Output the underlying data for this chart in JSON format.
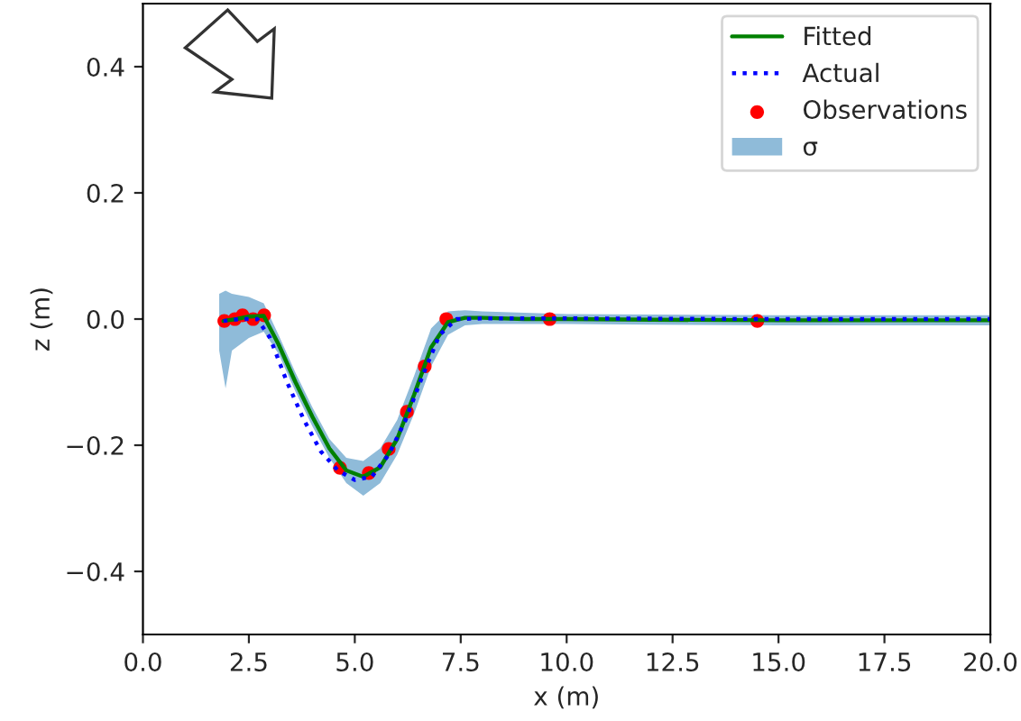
{
  "chart_data": {
    "type": "line",
    "xlabel": "x (m)",
    "ylabel": "z (m)",
    "xlim": [
      0,
      20
    ],
    "ylim": [
      -0.5,
      0.5
    ],
    "xticks": [
      {
        "value": 0,
        "label": "0.0"
      },
      {
        "value": 2.5,
        "label": "2.5"
      },
      {
        "value": 5,
        "label": "5.0"
      },
      {
        "value": 7.5,
        "label": "7.5"
      },
      {
        "value": 10,
        "label": "10.0"
      },
      {
        "value": 12.5,
        "label": "12.5"
      },
      {
        "value": 15,
        "label": "15.0"
      },
      {
        "value": 17.5,
        "label": "17.5"
      },
      {
        "value": 20,
        "label": "20.0"
      }
    ],
    "yticks": [
      {
        "value": -0.4,
        "label": "−0.4"
      },
      {
        "value": -0.2,
        "label": "−0.2"
      },
      {
        "value": 0,
        "label": "0.0"
      },
      {
        "value": 0.2,
        "label": "0.2"
      },
      {
        "value": 0.4,
        "label": "0.4"
      }
    ],
    "legend": "top right",
    "grid": false,
    "series": [
      {
        "name": "σ",
        "type": "area",
        "color": "#8fbbd9",
        "x": [
          1.8,
          1.95,
          2.1,
          2.5,
          2.85,
          3.2,
          3.6,
          4.0,
          4.4,
          4.8,
          5.2,
          5.6,
          6.0,
          6.4,
          6.8,
          7.2,
          7.6,
          8.0,
          9,
          10,
          12,
          15,
          20
        ],
        "values": [
          null,
          null,
          null,
          null,
          null,
          null,
          null,
          null,
          null,
          null,
          null,
          null,
          null,
          null,
          null,
          null,
          null,
          null,
          null,
          null,
          null,
          null,
          null
        ],
        "lower": [
          -0.05,
          -0.11,
          -0.05,
          -0.03,
          -0.02,
          -0.055,
          -0.115,
          -0.17,
          -0.22,
          -0.26,
          -0.28,
          -0.26,
          -0.215,
          -0.15,
          -0.075,
          -0.025,
          -0.01,
          -0.008,
          -0.008,
          -0.008,
          -0.009,
          -0.01,
          -0.01
        ],
        "upper": [
          0.04,
          0.045,
          0.04,
          0.035,
          0.025,
          -0.025,
          -0.085,
          -0.14,
          -0.19,
          -0.22,
          -0.225,
          -0.205,
          -0.16,
          -0.09,
          -0.015,
          0.012,
          0.014,
          0.012,
          0.01,
          0.008,
          0.007,
          0.006,
          0.006
        ]
      },
      {
        "name": "Fitted",
        "type": "line",
        "color": "#008000",
        "line_style": "solid",
        "x": [
          1.9,
          2.2,
          2.5,
          2.85,
          3.2,
          3.6,
          4.0,
          4.4,
          4.8,
          5.2,
          5.6,
          6.0,
          6.4,
          6.8,
          7.2,
          7.6,
          8.0,
          9,
          10,
          12,
          15,
          20
        ],
        "values": [
          -0.003,
          0.0,
          0.004,
          0.005,
          -0.04,
          -0.1,
          -0.155,
          -0.205,
          -0.24,
          -0.25,
          -0.235,
          -0.19,
          -0.12,
          -0.045,
          -0.005,
          0.002,
          0.002,
          0.0,
          0.0,
          -0.001,
          -0.002,
          -0.002
        ]
      },
      {
        "name": "Actual",
        "type": "line",
        "color": "#0000ff",
        "line_style": "dotted",
        "x": [
          1.9,
          2.3,
          2.7,
          3.0,
          3.4,
          3.8,
          4.2,
          4.6,
          5.0,
          5.4,
          5.8,
          6.2,
          6.6,
          7.0,
          7.4,
          8,
          10,
          15,
          20
        ],
        "values": [
          -0.003,
          0.0,
          0.0,
          -0.03,
          -0.1,
          -0.16,
          -0.21,
          -0.24,
          -0.255,
          -0.25,
          -0.215,
          -0.16,
          -0.09,
          -0.025,
          0.0,
          0.001,
          0.001,
          0.0,
          0.0
        ]
      },
      {
        "name": "Observations",
        "type": "scatter",
        "color": "#ff0000",
        "marker": "circle",
        "x": [
          1.92,
          2.17,
          2.35,
          2.6,
          2.86,
          4.65,
          5.33,
          5.8,
          6.23,
          6.65,
          7.16,
          9.6,
          14.5
        ],
        "values": [
          -0.003,
          0.0,
          0.006,
          0.0,
          0.006,
          -0.236,
          -0.244,
          -0.206,
          -0.147,
          -0.075,
          0.0,
          0.0,
          -0.003
        ]
      }
    ]
  }
}
